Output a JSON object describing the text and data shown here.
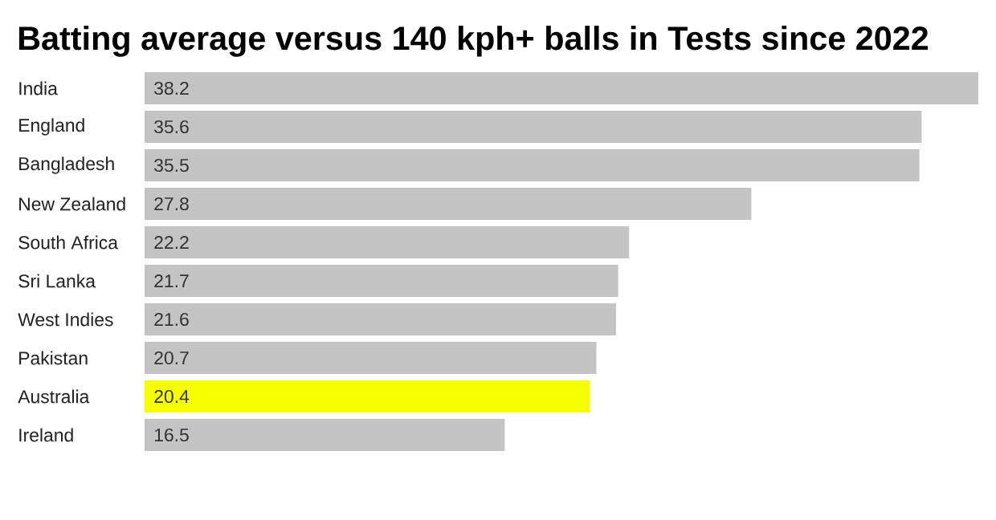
{
  "chart_data": {
    "type": "bar",
    "orientation": "horizontal",
    "title": "Batting average versus 140 kph+ balls in Tests since 2022",
    "categories": [
      "India",
      "England",
      "Bangladesh",
      "New Zealand",
      "South Africa",
      "Sri Lanka",
      "West Indies",
      "Pakistan",
      "Australia",
      "Ireland"
    ],
    "values": [
      38.2,
      35.6,
      35.5,
      27.8,
      22.2,
      21.7,
      21.6,
      20.7,
      20.4,
      16.5
    ],
    "colors": [
      "#c4c4c4",
      "#c4c4c4",
      "#c4c4c4",
      "#c4c4c4",
      "#c4c4c4",
      "#c4c4c4",
      "#c4c4c4",
      "#c4c4c4",
      "#f5ff00",
      "#c4c4c4"
    ],
    "data_labels": true
  }
}
